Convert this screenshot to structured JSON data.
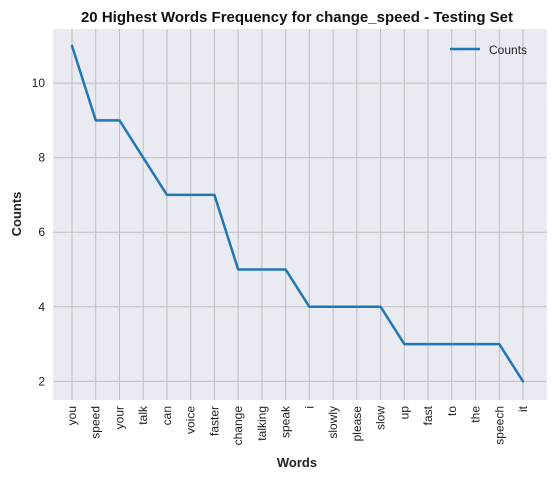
{
  "chart_data": {
    "type": "line",
    "title": "20 Highest Words Frequency for change_speed - Testing Set",
    "xlabel": "Words",
    "ylabel": "Counts",
    "categories": [
      "you",
      "speed",
      "your",
      "talk",
      "can",
      "voice",
      "faster",
      "change",
      "talking",
      "speak",
      "i",
      "slowly",
      "please",
      "slow",
      "up",
      "fast",
      "to",
      "the",
      "speech",
      "it"
    ],
    "series": [
      {
        "name": "Counts",
        "values": [
          11,
          9,
          9,
          8,
          7,
          7,
          7,
          5,
          5,
          5,
          4,
          4,
          4,
          4,
          3,
          3,
          3,
          3,
          3,
          2
        ],
        "color": "#1f77b4"
      }
    ],
    "ylim": [
      1.5,
      11.45
    ],
    "yticks": [
      2,
      4,
      6,
      8,
      10
    ],
    "grid": true,
    "legend_position": "top-right",
    "background": "#eaeaf2",
    "grid_color": "#bfbfbf"
  }
}
